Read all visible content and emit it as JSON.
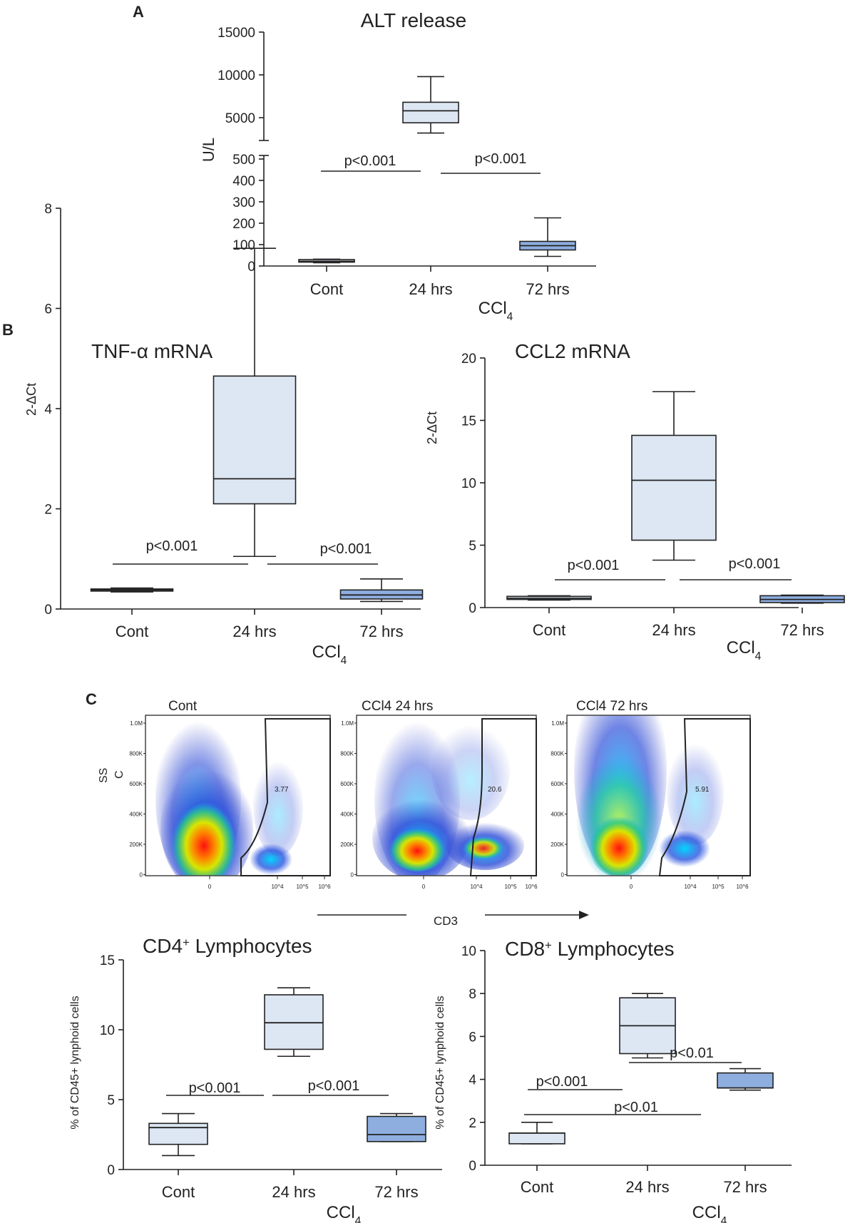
{
  "panel_labels": {
    "a": "A",
    "b": "B",
    "c": "C"
  },
  "shared_labels": {
    "ccl4": "CCl",
    "ccl4_sub": "4"
  },
  "chart_data": [
    {
      "id": "alt",
      "type": "boxplot",
      "title": "ALT release",
      "ylabel": "U/L",
      "categories": [
        "Cont",
        "24 hrs",
        "72 hrs"
      ],
      "xgroup_label": "CCl4",
      "axis_break": true,
      "ylim_lower": [
        0,
        500
      ],
      "ylim_upper": [
        2500,
        15000
      ],
      "lower_ticks": [
        "0",
        "100",
        "200",
        "300",
        "400",
        "500"
      ],
      "upper_ticks": [
        "5000",
        "10000",
        "15000"
      ],
      "boxes": [
        {
          "min": 15,
          "q1": 18,
          "median": 22,
          "q3": 30,
          "max": 32
        },
        {
          "min": 3200,
          "q1": 4400,
          "median": 5800,
          "q3": 6800,
          "max": 9800
        },
        {
          "min": 45,
          "q1": 75,
          "median": 95,
          "q3": 115,
          "max": 225
        }
      ],
      "annotations": [
        {
          "text": "p<0.001"
        },
        {
          "text": "p<0.001"
        }
      ]
    },
    {
      "id": "tnf",
      "type": "boxplot",
      "title": "TNF-α mRNA",
      "ylabel": "2-ΔCt",
      "categories": [
        "Cont",
        "24 hrs",
        "72 hrs"
      ],
      "xgroup_label": "CCl4",
      "ylim": [
        0,
        8
      ],
      "ticks": [
        "0",
        "2",
        "4",
        "6",
        "8"
      ],
      "boxes": [
        {
          "min": 0.34,
          "q1": 0.36,
          "median": 0.38,
          "q3": 0.4,
          "max": 0.42
        },
        {
          "min": 1.05,
          "q1": 2.1,
          "median": 2.6,
          "q3": 4.65,
          "max": 7.2
        },
        {
          "min": 0.15,
          "q1": 0.2,
          "median": 0.28,
          "q3": 0.38,
          "max": 0.6
        }
      ],
      "annotations": [
        {
          "text": "p<0.001"
        },
        {
          "text": "p<0.001"
        }
      ]
    },
    {
      "id": "ccl2",
      "type": "boxplot",
      "title": "CCL2 mRNA",
      "ylabel": "2-ΔCt",
      "categories": [
        "Cont",
        "24 hrs",
        "72 hrs"
      ],
      "xgroup_label": "CCl4",
      "ylim": [
        0,
        20
      ],
      "ticks": [
        "0",
        "5",
        "10",
        "15",
        "20"
      ],
      "boxes": [
        {
          "min": 0.6,
          "q1": 0.65,
          "median": 0.75,
          "q3": 0.9,
          "max": 0.95
        },
        {
          "min": 3.8,
          "q1": 5.4,
          "median": 10.2,
          "q3": 13.8,
          "max": 17.3
        },
        {
          "min": 0.35,
          "q1": 0.4,
          "median": 0.65,
          "q3": 0.95,
          "max": 1.0
        }
      ],
      "annotations": [
        {
          "text": "p<0.001"
        },
        {
          "text": "p<0.001"
        }
      ]
    },
    {
      "id": "cd4",
      "type": "boxplot",
      "title": "CD4",
      "title_sup": "+",
      "title_rest": " Lymphocytes",
      "ylabel": "% of CD45+ lynphoid cells",
      "categories": [
        "Cont",
        "24 hrs",
        "72 hrs"
      ],
      "xgroup_label": "CCl4",
      "ylim": [
        0,
        15
      ],
      "ticks": [
        "0",
        "5",
        "10",
        "15"
      ],
      "boxes": [
        {
          "min": 1.0,
          "q1": 1.8,
          "median": 3.0,
          "q3": 3.3,
          "max": 4.0
        },
        {
          "min": 8.1,
          "q1": 8.6,
          "median": 10.5,
          "q3": 12.5,
          "max": 13.0
        },
        {
          "min": 2.0,
          "q1": 2.0,
          "median": 2.5,
          "q3": 3.8,
          "max": 4.0
        }
      ],
      "annotations": [
        {
          "text": "p<0.001"
        },
        {
          "text": "p<0.001"
        }
      ]
    },
    {
      "id": "cd8",
      "type": "boxplot",
      "title": "CD8",
      "title_sup": "+",
      "title_rest": " Lymphocytes",
      "ylabel": "% of CD45+ lynphoid cells",
      "categories": [
        "Cont",
        "24 hrs",
        "72 hrs"
      ],
      "xgroup_label": "CCl4",
      "ylim": [
        0,
        10
      ],
      "ticks": [
        "0",
        "2",
        "4",
        "6",
        "8",
        "10"
      ],
      "boxes": [
        {
          "min": 1.0,
          "q1": 1.0,
          "median": 1.5,
          "q3": 1.5,
          "max": 2.0
        },
        {
          "min": 5.0,
          "q1": 5.2,
          "median": 6.5,
          "q3": 7.8,
          "max": 8.0
        },
        {
          "min": 3.5,
          "q1": 3.6,
          "median": 3.6,
          "q3": 4.3,
          "max": 4.5
        }
      ],
      "annotations": [
        {
          "text": "p<0.001"
        },
        {
          "text": "p<0.01"
        },
        {
          "text": "p<0.01"
        }
      ]
    }
  ],
  "flow": {
    "plots": [
      {
        "title": "Cont",
        "gate_value": "3.77"
      },
      {
        "title": "CCl4 24 hrs",
        "gate_value": "20.6"
      },
      {
        "title": "CCl4 72 hrs",
        "gate_value": "5.91"
      }
    ],
    "y_ticks": [
      "1.0M",
      "800K",
      "600K",
      "400K",
      "200K",
      "0"
    ],
    "x_ticks": [
      "0",
      "10^4",
      "10^5",
      "10^6"
    ],
    "ylabel_line1": "SS",
    "ylabel_line2": "C",
    "xlabel": "CD3"
  },
  "colors": {
    "box_light": "#dde6f3",
    "box_72": "#8eaee0",
    "line": "#222222"
  }
}
